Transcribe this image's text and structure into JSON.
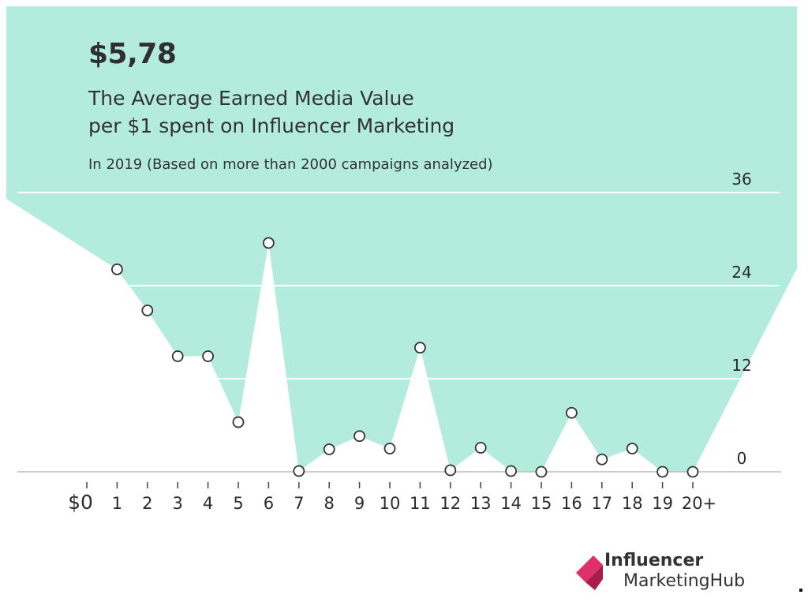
{
  "headline": "$5,78",
  "subtitle_line1": "The Average Earned Media Value",
  "subtitle_line2": "per $1 spent on Influencer Marketing",
  "note": "In 2019 (Based on more than 2000 campaigns analyzed)",
  "logo": {
    "line1": "Influencer",
    "line2": "MarketingHub",
    "colors": {
      "mark_primary": "#e0306a",
      "mark_secondary": "#a81d4c"
    }
  },
  "colors": {
    "fill": "#b3ebdd",
    "gridline": "#ffffff",
    "marker_fill": "#ffffff",
    "marker_stroke": "#333333",
    "axis": "#bdbdbd",
    "text": "#2b2b2b"
  },
  "chart_data": {
    "type": "area",
    "title": "$5,78",
    "x_tick_labels": [
      "$0",
      "1",
      "2",
      "3",
      "4",
      "5",
      "6",
      "7",
      "8",
      "9",
      "10",
      "11",
      "12",
      "13",
      "14",
      "15",
      "16",
      "17",
      "18",
      "19",
      "20+"
    ],
    "y_tick_labels": [
      "36",
      "24",
      "12",
      "0"
    ],
    "ylim": [
      0,
      36
    ],
    "grid": true,
    "series": [
      {
        "x": [
          0,
          1,
          2,
          3,
          4,
          5,
          6,
          7,
          8,
          9,
          10,
          11,
          12,
          13,
          14,
          15,
          16,
          17,
          18,
          19,
          20
        ],
        "values": [
          null,
          26.1,
          20.8,
          14.9,
          14.9,
          6.4,
          29.5,
          0.1,
          2.9,
          4.6,
          3.0,
          16.0,
          0.2,
          3.1,
          0.1,
          0.0,
          7.6,
          1.6,
          3.0,
          0.0,
          0.0
        ],
        "markers": [
          false,
          true,
          true,
          true,
          true,
          true,
          true,
          true,
          true,
          true,
          true,
          true,
          true,
          true,
          true,
          true,
          true,
          true,
          true,
          true,
          true
        ]
      }
    ]
  }
}
